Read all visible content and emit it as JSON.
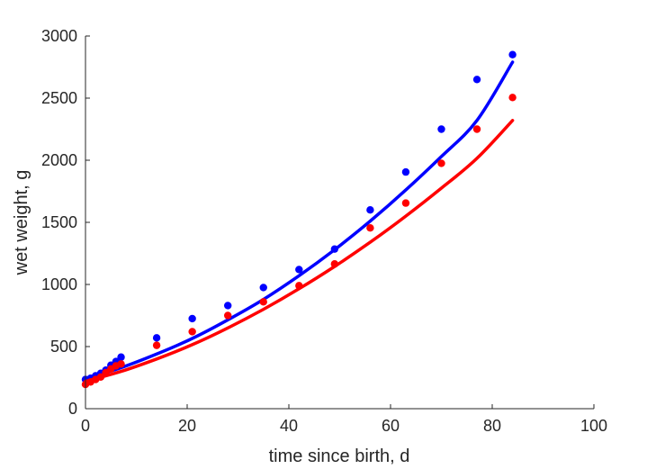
{
  "chart_data": {
    "type": "scatter",
    "title": "",
    "xlabel": "time since birth, d",
    "ylabel": "wet weight, g",
    "xlim": [
      0,
      100
    ],
    "ylim": [
      0,
      3000
    ],
    "xticks": [
      0,
      20,
      40,
      60,
      80,
      100
    ],
    "yticks": [
      0,
      500,
      1000,
      1500,
      2000,
      2500,
      3000
    ],
    "xtick_labels": [
      "0",
      "20",
      "40",
      "60",
      "80",
      "100"
    ],
    "ytick_labels": [
      "0",
      "500",
      "1000",
      "1500",
      "2000",
      "2500",
      "3000"
    ],
    "grid": false,
    "legend": "none",
    "series": [
      {
        "color": "#0000ff",
        "points": [
          {
            "x": 0,
            "y": 235
          },
          {
            "x": 1,
            "y": 245
          },
          {
            "x": 2,
            "y": 265
          },
          {
            "x": 3,
            "y": 285
          },
          {
            "x": 4,
            "y": 310
          },
          {
            "x": 5,
            "y": 350
          },
          {
            "x": 6,
            "y": 380
          },
          {
            "x": 7,
            "y": 415
          },
          {
            "x": 14,
            "y": 570
          },
          {
            "x": 21,
            "y": 725
          },
          {
            "x": 28,
            "y": 830
          },
          {
            "x": 35,
            "y": 975
          },
          {
            "x": 42,
            "y": 1120
          },
          {
            "x": 49,
            "y": 1285
          },
          {
            "x": 56,
            "y": 1600
          },
          {
            "x": 63,
            "y": 1905
          },
          {
            "x": 70,
            "y": 2250
          },
          {
            "x": 77,
            "y": 2650
          },
          {
            "x": 84,
            "y": 2850
          }
        ],
        "fit": [
          {
            "x": 0,
            "y": 240
          },
          {
            "x": 7,
            "y": 330
          },
          {
            "x": 14,
            "y": 440
          },
          {
            "x": 21,
            "y": 565
          },
          {
            "x": 28,
            "y": 715
          },
          {
            "x": 35,
            "y": 880
          },
          {
            "x": 42,
            "y": 1070
          },
          {
            "x": 49,
            "y": 1280
          },
          {
            "x": 56,
            "y": 1510
          },
          {
            "x": 63,
            "y": 1760
          },
          {
            "x": 70,
            "y": 2030
          },
          {
            "x": 77,
            "y": 2320
          },
          {
            "x": 84,
            "y": 2790
          }
        ]
      },
      {
        "color": "#ff0000",
        "points": [
          {
            "x": 0,
            "y": 195
          },
          {
            "x": 1,
            "y": 215
          },
          {
            "x": 2,
            "y": 235
          },
          {
            "x": 3,
            "y": 255
          },
          {
            "x": 4,
            "y": 290
          },
          {
            "x": 5,
            "y": 320
          },
          {
            "x": 6,
            "y": 345
          },
          {
            "x": 7,
            "y": 360
          },
          {
            "x": 14,
            "y": 510
          },
          {
            "x": 21,
            "y": 620
          },
          {
            "x": 28,
            "y": 750
          },
          {
            "x": 35,
            "y": 860
          },
          {
            "x": 42,
            "y": 990
          },
          {
            "x": 49,
            "y": 1165
          },
          {
            "x": 56,
            "y": 1455
          },
          {
            "x": 63,
            "y": 1655
          },
          {
            "x": 70,
            "y": 1975
          },
          {
            "x": 77,
            "y": 2250
          },
          {
            "x": 84,
            "y": 2505
          }
        ],
        "fit": [
          {
            "x": 0,
            "y": 220
          },
          {
            "x": 7,
            "y": 300
          },
          {
            "x": 14,
            "y": 400
          },
          {
            "x": 21,
            "y": 515
          },
          {
            "x": 28,
            "y": 650
          },
          {
            "x": 35,
            "y": 800
          },
          {
            "x": 42,
            "y": 965
          },
          {
            "x": 49,
            "y": 1145
          },
          {
            "x": 56,
            "y": 1340
          },
          {
            "x": 63,
            "y": 1550
          },
          {
            "x": 70,
            "y": 1775
          },
          {
            "x": 77,
            "y": 2015
          },
          {
            "x": 84,
            "y": 2320
          }
        ]
      }
    ]
  }
}
